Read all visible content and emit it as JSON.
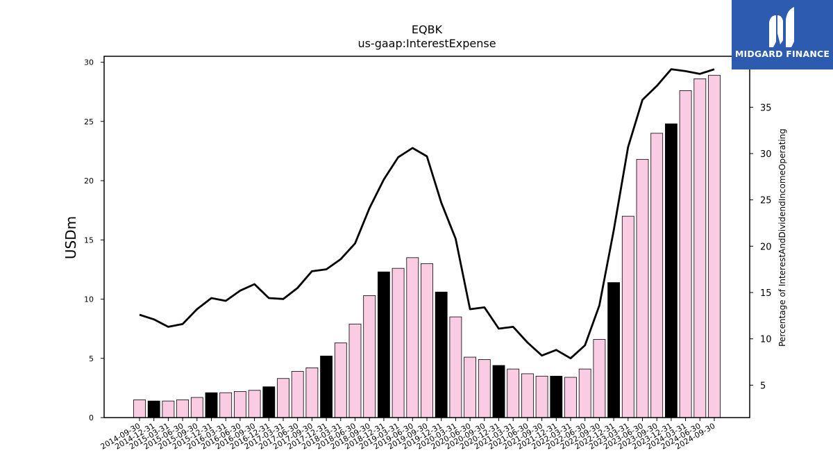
{
  "chart_data": {
    "type": "bar",
    "title": "EQBK",
    "subtitle": "us-gaap:InterestExpense",
    "ylabel": "USDm",
    "y2label": "Percentage of InterestAndDividendIncomeOperating",
    "ylim": [
      0,
      30.5
    ],
    "y2lim": [
      1.5,
      40.5
    ],
    "yticks": [
      0,
      5,
      10,
      15,
      20,
      25,
      30
    ],
    "y2ticks": [
      5,
      10,
      15,
      20,
      25,
      30,
      35
    ],
    "categories": [
      "2014-09-30",
      "2014-12-31",
      "2015-03-31",
      "2015-06-30",
      "2015-09-30",
      "2015-12-31",
      "2016-03-31",
      "2016-06-30",
      "2016-09-30",
      "2016-12-31",
      "2017-03-31",
      "2017-06-30",
      "2017-09-30",
      "2017-12-31",
      "2018-03-31",
      "2018-06-30",
      "2018-09-30",
      "2018-12-31",
      "2019-03-31",
      "2019-06-30",
      "2019-09-30",
      "2019-12-31",
      "2020-03-31",
      "2020-06-30",
      "2020-09-30",
      "2020-12-31",
      "2021-03-31",
      "2021-06-30",
      "2021-09-30",
      "2021-12-31",
      "2022-03-31",
      "2022-06-30",
      "2022-09-30",
      "2022-12-31",
      "2023-03-31",
      "2023-06-30",
      "2023-09-30",
      "2023-12-31",
      "2024-03-31",
      "2024-06-30",
      "2024-09-30"
    ],
    "series": [
      {
        "kind": "bar",
        "values": [
          1.5,
          1.4,
          1.4,
          1.5,
          1.7,
          2.1,
          2.1,
          2.2,
          2.3,
          2.6,
          3.3,
          3.9,
          4.2,
          5.2,
          6.3,
          7.9,
          10.3,
          12.3,
          12.6,
          13.5,
          13.0,
          10.6,
          8.5,
          5.1,
          4.9,
          4.4,
          4.1,
          3.7,
          3.5,
          3.5,
          3.4,
          4.1,
          6.6,
          11.4,
          17.0,
          21.8,
          24.0,
          24.8,
          27.6,
          28.6,
          28.9
        ],
        "colors": {
          "default": "#f9cce3",
          "annual": "#000000"
        },
        "annual_index": [
          1,
          5,
          9,
          13,
          17,
          21,
          25,
          29,
          33,
          37
        ]
      },
      {
        "kind": "line",
        "axis": "right",
        "color": "#000000",
        "values": [
          12.6,
          12.1,
          11.3,
          11.6,
          13.2,
          14.4,
          14.1,
          15.2,
          15.9,
          14.4,
          14.3,
          15.5,
          17.3,
          17.5,
          18.6,
          20.3,
          24.1,
          27.2,
          29.6,
          30.6,
          29.7,
          24.7,
          20.8,
          13.2,
          13.4,
          11.1,
          11.3,
          9.6,
          8.2,
          8.8,
          7.9,
          9.3,
          13.6,
          21.7,
          30.7,
          35.8,
          37.3,
          39.1,
          38.9,
          38.6,
          39.1
        ]
      }
    ],
    "grid": false,
    "legend": "none"
  },
  "logo": {
    "text": "MIDGARD FINANCE"
  }
}
